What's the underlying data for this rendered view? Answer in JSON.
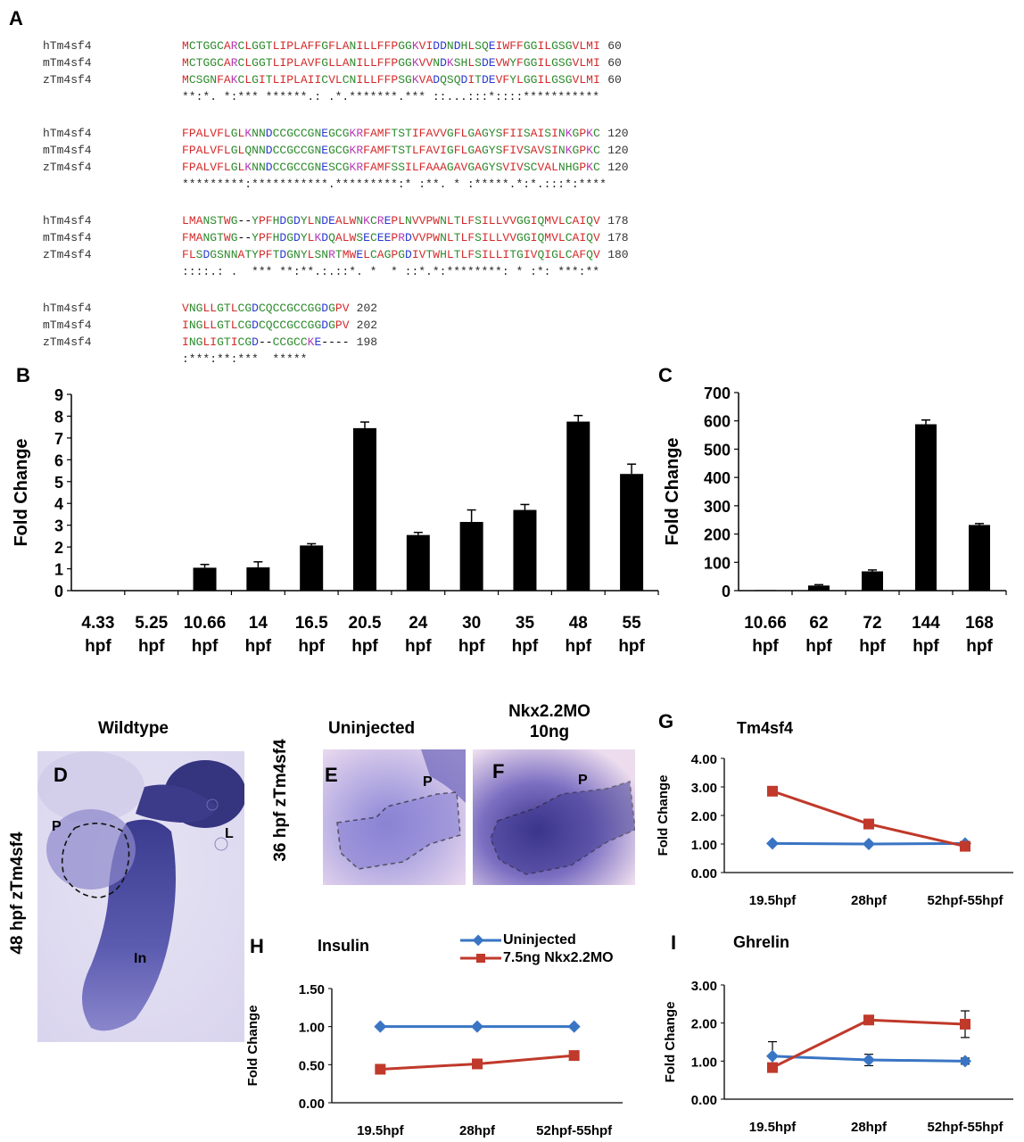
{
  "panels": {
    "A": "A",
    "B": "B",
    "C": "C",
    "D": "D",
    "E": "E",
    "F": "F",
    "G": "G",
    "H": "H",
    "I": "I"
  },
  "alignment": {
    "blocks": [
      {
        "rows": [
          {
            "name": "hTm4sf4",
            "seq": "MCTGGCARCLGGTLIPLAFFGFLANILLFFPGGKVIDDNDHLSQEIWFFGGILGSGVLMI",
            "end": "60"
          },
          {
            "name": "mTm4sf4",
            "seq": "MCTGGCARCLGGTLIPLAVFGLLANILLFFPGGKVVNDKSHLSDEVWYFGGILGSGVLMI",
            "end": "60"
          },
          {
            "name": "zTm4sf4",
            "seq": "MCSGNFAKCLGITLIPLAIICVLCNILLFFPSGKVADQSQDITDEVFYLGGILGSGVLMI",
            "end": "60"
          }
        ],
        "cons": "**:*. *:*** ******.: .*.*******.*** ::...:::*::::***********"
      },
      {
        "rows": [
          {
            "name": "hTm4sf4",
            "seq": "FPALVFLGLKNNDCCGCCGNEGCGKRFAMFTSTIFAVVGFLGAGYSFIISAISINKGPKC",
            "end": "120"
          },
          {
            "name": "mTm4sf4",
            "seq": "FPALVFLGLQNNDCCGCCGNEGCGKRFAMFTSTLFAVIGFLGAGYSFIVSAVSINKGPKC",
            "end": "120"
          },
          {
            "name": "zTm4sf4",
            "seq": "FPALVFLGLKNNDCCGCCGNESCGKRFAMFSSILFAAAGAVGAGYSVIVSCVALNHGPKC",
            "end": "120"
          }
        ],
        "cons": "*********:***********.*********:* :**. * :*****.*:*.:::*:****"
      },
      {
        "rows": [
          {
            "name": "hTm4sf4",
            "seq": "LMANSTWG--YPFHDGDYLNDEALWNKCREPLNVVPWNLTLFSILLVVGGIQMVLCAIQV",
            "end": "178"
          },
          {
            "name": "mTm4sf4",
            "seq": "FMANGTWG--YPFHDGDYLKDQALWSECEEPRDVVPWNLTLFSILLVVGGIQMVLCAIQV",
            "end": "178"
          },
          {
            "name": "zTm4sf4",
            "seq": "FLSDGSNNATYPFTDGNYLSNRTMWELCAGPGDIVTWHLTLFSILLITGIVQIGLCAFQV",
            "end": "180"
          }
        ],
        "cons": "::::.: .  *** **:**.:.::*. *  * ::*.*:********: * :*: ***:**"
      },
      {
        "rows": [
          {
            "name": "hTm4sf4",
            "seq": "VNGLLGTLCGDCQCCGCCGGDGPV",
            "end": "202"
          },
          {
            "name": "mTm4sf4",
            "seq": "INGLLGTLCGDCQCCGCCGGDGPV",
            "end": "202"
          },
          {
            "name": "zTm4sf4",
            "seq": "INGLIGTICGD--CCGCCKE----",
            "end": "198"
          }
        ],
        "cons": ":***:**:***  *****"
      }
    ]
  },
  "chart_data": [
    {
      "panel": "B",
      "type": "bar",
      "categories": [
        "4.33",
        "5.25",
        "10.66",
        "14",
        "16.5",
        "20.5",
        "24",
        "30",
        "35",
        "48",
        "55"
      ],
      "category_unit": "hpf",
      "values": [
        0.02,
        0.02,
        1.05,
        1.07,
        2.07,
        7.45,
        2.55,
        3.15,
        3.7,
        7.75,
        5.35
      ],
      "errors": [
        0,
        0,
        0.15,
        0.25,
        0.08,
        0.28,
        0.12,
        0.55,
        0.25,
        0.28,
        0.45
      ],
      "ylabel": "Fold Change",
      "ylim": [
        0,
        9
      ],
      "yticks": [
        0,
        1,
        2,
        3,
        4,
        5,
        6,
        7,
        8,
        9
      ],
      "bar_color": "#000000"
    },
    {
      "panel": "C",
      "type": "bar",
      "categories": [
        "10.66",
        "62",
        "72",
        "144",
        "168"
      ],
      "category_unit": "hpf",
      "values": [
        2,
        18,
        68,
        588,
        232
      ],
      "errors": [
        0,
        3,
        5,
        15,
        5
      ],
      "ylabel": "Fold Change",
      "ylim": [
        0,
        700
      ],
      "yticks": [
        0,
        100,
        200,
        300,
        400,
        500,
        600,
        700
      ],
      "bar_color": "#000000"
    },
    {
      "panel": "G",
      "type": "line",
      "title": "Tm4sf4",
      "ylabel": "Fold Change",
      "categories": [
        "19.5hpf",
        "28hpf",
        "52hpf-55hpf"
      ],
      "ylim": [
        0,
        4
      ],
      "yticks": [
        "0.00",
        "1.00",
        "2.00",
        "3.00",
        "4.00"
      ],
      "series": [
        {
          "name": "Uninjected",
          "color": "#3a75c4",
          "marker": "diamond",
          "values": [
            1.02,
            1.0,
            1.02
          ],
          "errors": [
            0,
            0,
            0
          ]
        },
        {
          "name": "7.5ng Nkx2.2MO",
          "color": "#c0392b",
          "marker": "square",
          "values": [
            2.85,
            1.7,
            0.92
          ],
          "errors": [
            0,
            0,
            0
          ]
        }
      ]
    },
    {
      "panel": "H",
      "type": "line",
      "title": "Insulin",
      "ylabel": "Fold Change",
      "categories": [
        "19.5hpf",
        "28hpf",
        "52hpf-55hpf"
      ],
      "ylim": [
        0,
        1.5
      ],
      "yticks": [
        "0.00",
        "0.50",
        "1.00",
        "1.50"
      ],
      "series": [
        {
          "name": "Uninjected",
          "color": "#3a75c4",
          "marker": "diamond",
          "values": [
            1.0,
            1.0,
            1.0
          ],
          "errors": [
            0,
            0,
            0
          ]
        },
        {
          "name": "7.5ng Nkx2.2MO",
          "color": "#c0392b",
          "marker": "square",
          "values": [
            0.44,
            0.51,
            0.62
          ],
          "errors": [
            0,
            0,
            0
          ]
        }
      ]
    },
    {
      "panel": "I",
      "type": "line",
      "title": "Ghrelin",
      "ylabel": "Fold Change",
      "categories": [
        "19.5hpf",
        "28hpf",
        "52hpf-55hpf"
      ],
      "ylim": [
        0,
        3
      ],
      "yticks": [
        "0.00",
        "1.00",
        "2.00",
        "3.00"
      ],
      "series": [
        {
          "name": "Uninjected",
          "color": "#3a75c4",
          "marker": "diamond",
          "values": [
            1.13,
            1.03,
            1.0
          ],
          "errors": [
            0.38,
            0.15,
            0.08
          ]
        },
        {
          "name": "7.5ng Nkx2.2MO",
          "color": "#c0392b",
          "marker": "square",
          "values": [
            0.83,
            2.08,
            1.97
          ],
          "errors": [
            0,
            0,
            0.35
          ]
        }
      ]
    }
  ],
  "legend": {
    "uninjected": "Uninjected",
    "mo": "7.5ng Nkx2.2MO"
  },
  "micrographs": {
    "d_title": "Wildtype",
    "d_side": "48 hpf zTm4sf4",
    "d_p": "P",
    "d_l": "L",
    "d_in": "In",
    "ef_side": "36 hpf zTm4sf4",
    "e_title": "Uninjected",
    "f_title_1": "Nkx2.2MO",
    "f_title_2": "10ng",
    "e_p": "P",
    "f_p": "P"
  }
}
